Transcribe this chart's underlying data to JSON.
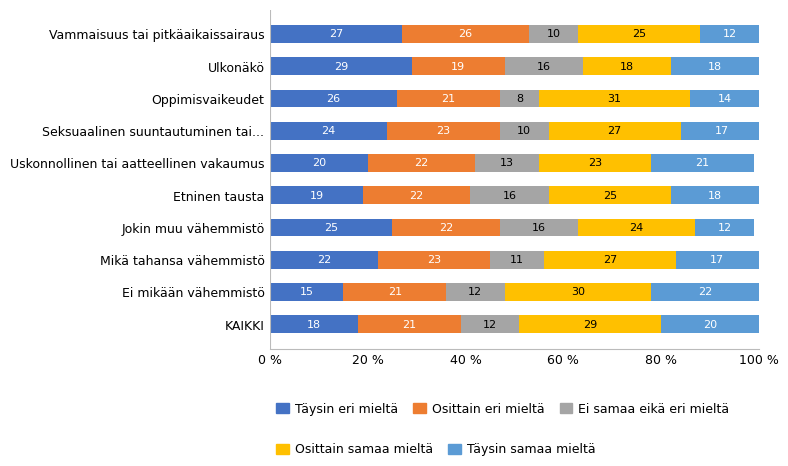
{
  "categories": [
    "Vammaisuus tai pitkäaikaissairaus",
    "Ulkonäkö",
    "Oppimisvaikeudet",
    "Seksuaalinen suuntautuminen tai...",
    "Uskonnollinen tai aatteellinen vakaumus",
    "Etninen tausta",
    "Jokin muu vähemmistö",
    "Mikä tahansa vähemmistö",
    "Ei mikään vähemmistö",
    "KAIKKI"
  ],
  "series": [
    {
      "label": "Täysin eri mieltä",
      "color": "#4472C4",
      "values": [
        27,
        29,
        26,
        24,
        20,
        19,
        25,
        22,
        15,
        18
      ]
    },
    {
      "label": "Osittain eri mieltä",
      "color": "#ED7D31",
      "values": [
        26,
        19,
        21,
        23,
        22,
        22,
        22,
        23,
        21,
        21
      ]
    },
    {
      "label": "Ei samaa eikä eri mieltä",
      "color": "#A5A5A5",
      "values": [
        10,
        16,
        8,
        10,
        13,
        16,
        16,
        11,
        12,
        12
      ]
    },
    {
      "label": "Osittain samaa mieltä",
      "color": "#FFC000",
      "values": [
        25,
        18,
        31,
        27,
        23,
        25,
        24,
        27,
        30,
        29
      ]
    },
    {
      "label": "Täysin samaa mieltä",
      "color": "#5B9BD5",
      "values": [
        12,
        18,
        14,
        17,
        21,
        18,
        12,
        17,
        22,
        20
      ]
    }
  ],
  "xlim": [
    0,
    100
  ],
  "xtick_labels": [
    "0 %",
    "20 %",
    "40 %",
    "60 %",
    "80 %",
    "100 %"
  ],
  "xtick_values": [
    0,
    20,
    40,
    60,
    80,
    100
  ],
  "background_color": "#FFFFFF",
  "bar_height": 0.55,
  "label_fontsize": 8,
  "tick_fontsize": 9,
  "legend_fontsize": 9,
  "white_text_series": [
    "Täysin eri mieltä",
    "Osittain eri mieltä",
    "Täysin samaa mieltä"
  ],
  "legend_row1": [
    0,
    1,
    2
  ],
  "legend_row2": [
    3,
    4
  ]
}
